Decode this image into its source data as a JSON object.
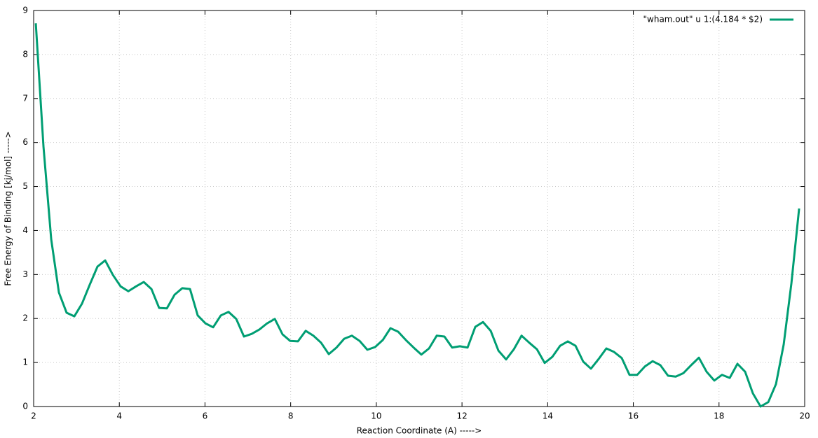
{
  "chart_data": {
    "type": "line",
    "xlabel": "Reaction Coordinate (A)  ----->",
    "ylabel": "Free Energy of Binding [kj/mol]  ----->",
    "xlim": [
      2,
      20
    ],
    "ylim": [
      0,
      9
    ],
    "xticks": [
      2,
      4,
      6,
      8,
      10,
      12,
      14,
      16,
      18,
      20
    ],
    "yticks": [
      0,
      1,
      2,
      3,
      4,
      5,
      6,
      7,
      8,
      9
    ],
    "grid": true,
    "legend": "top-right",
    "x": [
      2.05,
      2.23,
      2.41,
      2.59,
      2.77,
      2.95,
      3.13,
      3.31,
      3.49,
      3.67,
      3.85,
      4.03,
      4.21,
      4.39,
      4.57,
      4.75,
      4.93,
      5.11,
      5.29,
      5.47,
      5.65,
      5.83,
      6.01,
      6.19,
      6.37,
      6.55,
      6.73,
      6.91,
      7.09,
      7.27,
      7.45,
      7.63,
      7.81,
      7.99,
      8.17,
      8.35,
      8.53,
      8.71,
      8.89,
      9.07,
      9.25,
      9.43,
      9.61,
      9.79,
      9.97,
      10.15,
      10.33,
      10.51,
      10.69,
      10.87,
      11.05,
      11.23,
      11.41,
      11.59,
      11.77,
      11.95,
      12.13,
      12.31,
      12.49,
      12.67,
      12.85,
      13.03,
      13.21,
      13.39,
      13.57,
      13.75,
      13.93,
      14.11,
      14.29,
      14.47,
      14.65,
      14.83,
      15.01,
      15.19,
      15.37,
      15.55,
      15.73,
      15.91,
      16.09,
      16.27,
      16.45,
      16.63,
      16.81,
      16.99,
      17.17,
      17.35,
      17.53,
      17.71,
      17.89,
      18.07,
      18.25,
      18.43,
      18.61,
      18.79,
      18.97,
      19.15,
      19.33,
      19.51,
      19.69,
      19.87
    ],
    "series": [
      {
        "name": "\"wham.out\" u 1:(4.184 * $2)",
        "color": "#009e73",
        "values": [
          8.71,
          5.9,
          3.8,
          2.59,
          2.13,
          2.05,
          2.34,
          2.77,
          3.18,
          3.32,
          2.99,
          2.73,
          2.62,
          2.73,
          2.83,
          2.67,
          2.24,
          2.23,
          2.54,
          2.69,
          2.67,
          2.07,
          1.89,
          1.8,
          2.07,
          2.15,
          1.99,
          1.59,
          1.65,
          1.75,
          1.89,
          1.99,
          1.64,
          1.49,
          1.48,
          1.72,
          1.61,
          1.45,
          1.19,
          1.34,
          1.54,
          1.61,
          1.49,
          1.29,
          1.35,
          1.51,
          1.78,
          1.7,
          1.51,
          1.34,
          1.18,
          1.32,
          1.61,
          1.59,
          1.34,
          1.37,
          1.34,
          1.81,
          1.92,
          1.72,
          1.27,
          1.07,
          1.3,
          1.61,
          1.45,
          1.3,
          0.99,
          1.13,
          1.38,
          1.48,
          1.38,
          1.02,
          0.86,
          1.08,
          1.32,
          1.24,
          1.1,
          0.72,
          0.72,
          0.91,
          1.03,
          0.94,
          0.7,
          0.68,
          0.76,
          0.94,
          1.11,
          0.79,
          0.59,
          0.72,
          0.65,
          0.97,
          0.79,
          0.3,
          0.0,
          0.1,
          0.51,
          1.41,
          2.8,
          4.5
        ]
      }
    ]
  }
}
